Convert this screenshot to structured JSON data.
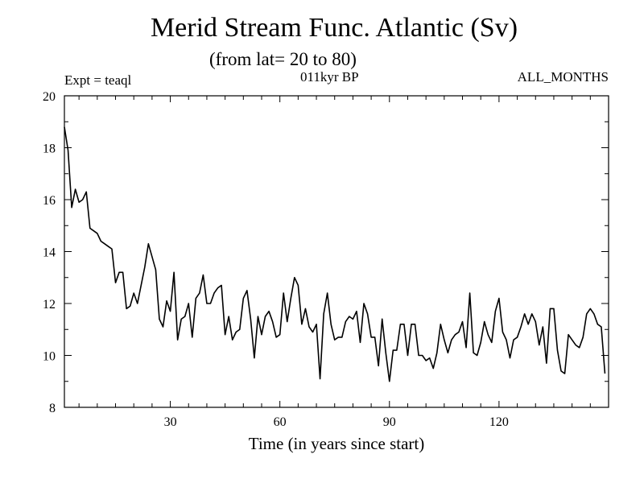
{
  "header": {
    "title": "Merid Stream Func. Atlantic (Sv)",
    "subtitle": "(from lat= 20 to 80)",
    "expt_label": "Expt = teaql",
    "period_label": "011kyr BP",
    "months_label": "ALL_MONTHS"
  },
  "chart_data": {
    "type": "line",
    "title": "Merid Stream Func. Atlantic (Sv)",
    "subtitle": "(from lat= 20 to 80)",
    "xlabel": "Time (in years since start)",
    "ylabel": "",
    "xlim": [
      1,
      150
    ],
    "ylim": [
      8,
      20
    ],
    "x_ticks": [
      30,
      60,
      90,
      120
    ],
    "y_ticks": [
      8,
      10,
      12,
      14,
      16,
      18,
      20
    ],
    "grid": false,
    "series": [
      {
        "name": "Merid Stream Func. Atlantic",
        "x_start": 1,
        "x_step": 1,
        "values": [
          18.8,
          17.9,
          15.7,
          16.4,
          15.9,
          16.0,
          16.3,
          14.9,
          14.8,
          14.7,
          14.4,
          14.3,
          14.2,
          14.1,
          12.8,
          13.2,
          13.2,
          11.8,
          11.9,
          12.4,
          12.0,
          12.7,
          13.4,
          14.3,
          13.8,
          13.3,
          11.4,
          11.1,
          12.1,
          11.7,
          13.2,
          10.6,
          11.4,
          11.5,
          12.0,
          10.7,
          12.2,
          12.4,
          13.1,
          12.0,
          12.0,
          12.4,
          12.6,
          12.7,
          10.8,
          11.5,
          10.6,
          10.9,
          11.0,
          12.2,
          12.5,
          11.4,
          9.9,
          11.5,
          10.8,
          11.5,
          11.7,
          11.3,
          10.7,
          10.8,
          12.4,
          11.3,
          12.2,
          13.0,
          12.7,
          11.2,
          11.8,
          11.1,
          10.9,
          11.2,
          9.1,
          11.6,
          12.4,
          11.2,
          10.6,
          10.7,
          10.7,
          11.3,
          11.5,
          11.4,
          11.7,
          10.5,
          12.0,
          11.6,
          10.7,
          10.7,
          9.6,
          11.4,
          10.1,
          9.0,
          10.2,
          10.2,
          11.2,
          11.2,
          10.0,
          11.2,
          11.2,
          10.0,
          10.0,
          9.8,
          9.9,
          9.5,
          10.1,
          11.2,
          10.6,
          10.1,
          10.6,
          10.8,
          10.9,
          11.3,
          10.3,
          12.4,
          10.1,
          10.0,
          10.5,
          11.3,
          10.8,
          10.5,
          11.7,
          12.2,
          10.9,
          10.6,
          9.9,
          10.6,
          10.7,
          11.1,
          11.6,
          11.2,
          11.6,
          11.3,
          10.4,
          11.1,
          9.7,
          11.8,
          11.8,
          10.2,
          9.4,
          9.3,
          10.8,
          10.6,
          10.4,
          10.3,
          10.7,
          11.6,
          11.8,
          11.6,
          11.2,
          11.1,
          9.3
        ]
      }
    ]
  }
}
